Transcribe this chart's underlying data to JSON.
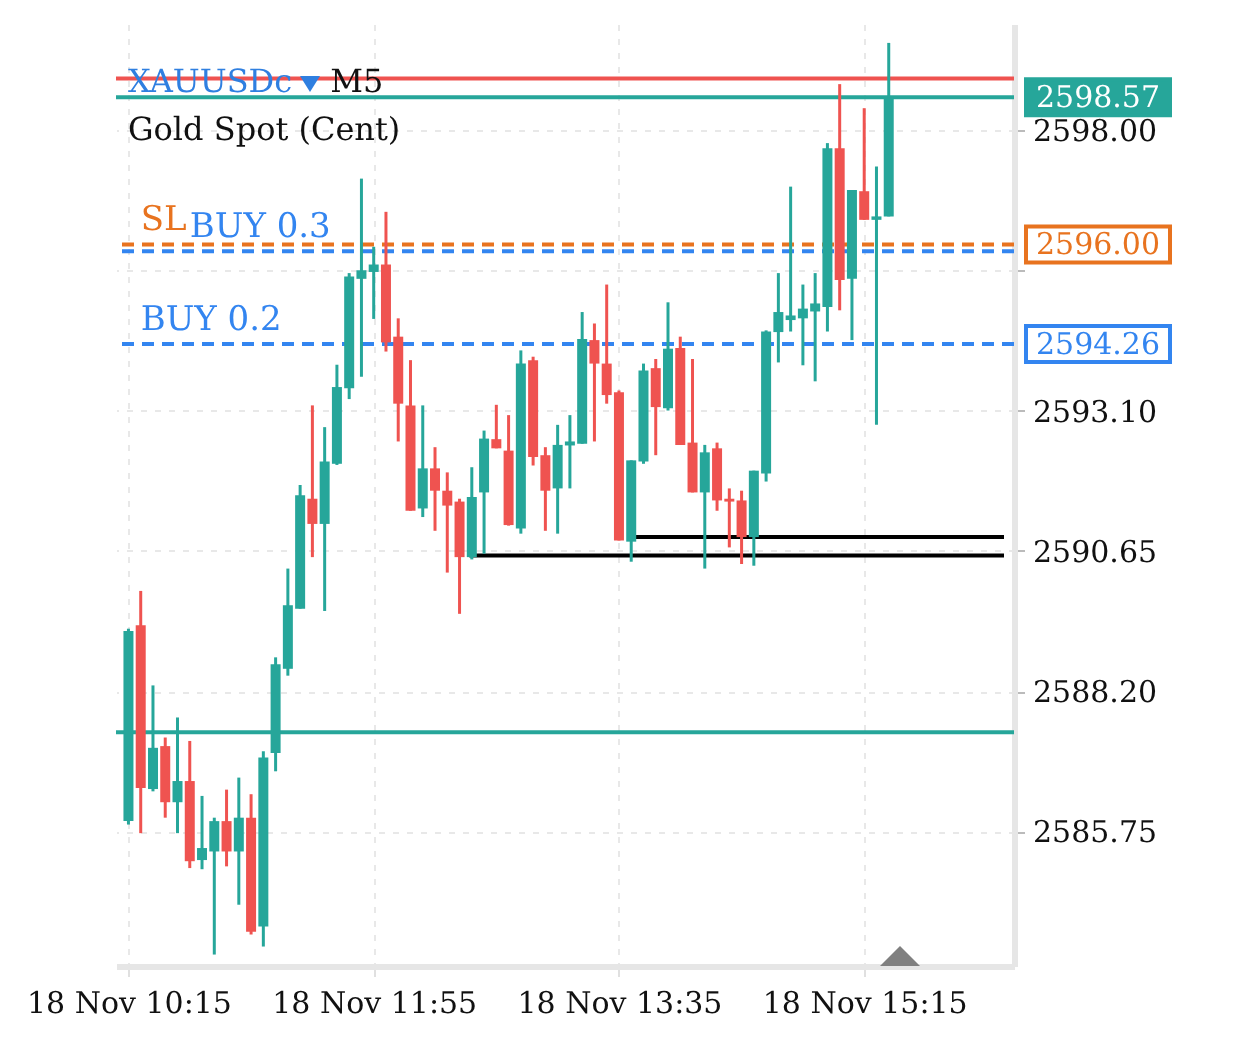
{
  "chart_data": {
    "type": "candlestick",
    "title": "XAUUSDc",
    "subtitle": "Gold Spot (Cent)",
    "annotations": [
      "M5",
      {
        "text": "SL",
        "x": "--11-18T10:20",
        "y": 2596.0
      },
      {
        "text": "BUY 0.3",
        "x": "--11-18T10:40",
        "y": 2595.88
      },
      {
        "text": "BUY 0.2",
        "x": "--11-18T10:20",
        "y": 2594.26
      }
    ],
    "x": [
      "--11-18T10:15",
      "--11-18T10:20",
      "--11-18T10:25",
      "--11-18T10:30",
      "--11-18T10:35",
      "--11-18T10:40",
      "--11-18T10:45",
      "--11-18T10:50",
      "--11-18T10:55",
      "--11-18T11:00",
      "--11-18T11:05",
      "--11-18T11:10",
      "--11-18T11:15",
      "--11-18T11:20",
      "--11-18T11:25",
      "--11-18T11:30",
      "--11-18T11:35",
      "--11-18T11:40",
      "--11-18T11:45",
      "--11-18T11:50",
      "--11-18T11:55",
      "--11-18T12:00",
      "--11-18T12:05",
      "--11-18T12:10",
      "--11-18T12:15",
      "--11-18T12:20",
      "--11-18T12:25",
      "--11-18T12:30",
      "--11-18T12:35",
      "--11-18T12:40",
      "--11-18T12:45",
      "--11-18T12:50",
      "--11-18T12:55",
      "--11-18T13:00",
      "--11-18T13:05",
      "--11-18T13:10",
      "--11-18T13:15",
      "--11-18T13:20",
      "--11-18T13:25",
      "--11-18T13:30",
      "--11-18T13:35",
      "--11-18T13:40",
      "--11-18T13:45",
      "--11-18T13:50",
      "--11-18T13:55",
      "--11-18T14:00",
      "--11-18T14:05",
      "--11-18T14:10",
      "--11-18T14:15",
      "--11-18T14:20",
      "--11-18T14:25",
      "--11-18T14:30",
      "--11-18T14:35",
      "--11-18T14:40",
      "--11-18T14:45",
      "--11-18T14:50",
      "--11-18T14:55",
      "--11-18T15:00",
      "--11-18T15:05",
      "--11-18T15:10",
      "--11-18T15:15",
      "--11-18T15:20",
      "--11-18T15:25"
    ],
    "ohlc": [
      [
        2585.93,
        2589.29,
        2585.87,
        2589.25
      ],
      [
        2589.35,
        2589.95,
        2585.72,
        2586.51
      ],
      [
        2586.49,
        2588.3,
        2586.45,
        2587.21
      ],
      [
        2587.24,
        2587.39,
        2585.99,
        2586.26
      ],
      [
        2586.26,
        2587.74,
        2585.72,
        2586.63
      ],
      [
        2586.63,
        2587.33,
        2585.11,
        2585.23
      ],
      [
        2585.25,
        2586.37,
        2585.09,
        2585.46
      ],
      [
        2585.4,
        2585.99,
        2583.6,
        2585.93
      ],
      [
        2585.93,
        2586.48,
        2585.14,
        2585.4
      ],
      [
        2585.4,
        2586.69,
        2584.47,
        2585.99
      ],
      [
        2585.99,
        2586.4,
        2583.95,
        2584.0
      ],
      [
        2584.09,
        2587.15,
        2583.74,
        2587.04
      ],
      [
        2587.12,
        2588.79,
        2586.8,
        2588.67
      ],
      [
        2588.59,
        2590.34,
        2588.47,
        2589.7
      ],
      [
        2589.64,
        2591.8,
        2589.64,
        2591.62
      ],
      [
        2591.56,
        2593.19,
        2590.54,
        2591.12
      ],
      [
        2591.12,
        2592.81,
        2589.6,
        2592.21
      ],
      [
        2592.17,
        2593.9,
        2592.15,
        2593.51
      ],
      [
        2593.49,
        2595.5,
        2593.3,
        2595.44
      ],
      [
        2595.4,
        2597.15,
        2593.69,
        2595.55
      ],
      [
        2595.52,
        2595.96,
        2594.7,
        2595.65
      ],
      [
        2595.65,
        2596.57,
        2594.13,
        2594.29
      ],
      [
        2594.39,
        2594.71,
        2592.56,
        2593.22
      ],
      [
        2593.19,
        2593.98,
        2591.35,
        2591.35
      ],
      [
        2591.39,
        2593.19,
        2591.24,
        2592.09
      ],
      [
        2592.09,
        2592.46,
        2591.0,
        2591.7
      ],
      [
        2591.7,
        2592.02,
        2590.27,
        2591.44
      ],
      [
        2591.51,
        2591.56,
        2589.55,
        2590.54
      ],
      [
        2590.54,
        2592.11,
        2590.5,
        2591.59
      ],
      [
        2591.67,
        2592.75,
        2590.6,
        2592.61
      ],
      [
        2592.6,
        2593.2,
        2592.44,
        2592.44
      ],
      [
        2592.4,
        2593.02,
        2591.09,
        2591.1
      ],
      [
        2591.04,
        2594.15,
        2590.95,
        2593.92
      ],
      [
        2593.98,
        2594.04,
        2592.14,
        2592.29
      ],
      [
        2592.32,
        2592.46,
        2591.0,
        2591.7
      ],
      [
        2591.74,
        2592.85,
        2590.95,
        2592.5
      ],
      [
        2592.49,
        2593.02,
        2591.74,
        2592.56
      ],
      [
        2592.52,
        2594.82,
        2592.52,
        2594.35
      ],
      [
        2594.33,
        2594.62,
        2592.56,
        2593.92
      ],
      [
        2593.92,
        2595.3,
        2593.22,
        2593.37
      ],
      [
        2593.42,
        2593.45,
        2590.83,
        2590.83
      ],
      [
        2590.81,
        2592.23,
        2590.46,
        2592.23
      ],
      [
        2592.21,
        2593.92,
        2592.17,
        2593.8
      ],
      [
        2593.84,
        2594.0,
        2592.32,
        2593.16
      ],
      [
        2593.14,
        2594.99,
        2593.1,
        2594.18
      ],
      [
        2594.19,
        2594.39,
        2592.5,
        2592.5
      ],
      [
        2592.54,
        2594.0,
        2591.67,
        2591.67
      ],
      [
        2591.67,
        2592.5,
        2590.34,
        2592.37
      ],
      [
        2592.44,
        2592.54,
        2591.35,
        2591.53
      ],
      [
        2591.56,
        2591.74,
        2590.71,
        2591.51
      ],
      [
        2591.53,
        2591.7,
        2590.42,
        2590.89
      ],
      [
        2590.89,
        2592.05,
        2590.39,
        2592.05
      ],
      [
        2592.0,
        2594.5,
        2591.86,
        2594.48
      ],
      [
        2594.47,
        2595.5,
        2593.94,
        2594.82
      ],
      [
        2594.68,
        2597.01,
        2594.48,
        2594.76
      ],
      [
        2594.71,
        2595.3,
        2593.89,
        2594.88
      ],
      [
        2594.83,
        2595.5,
        2593.61,
        2594.97
      ],
      [
        2594.91,
        2597.77,
        2594.48,
        2597.68
      ],
      [
        2597.68,
        2598.8,
        2594.85,
        2595.38
      ],
      [
        2595.4,
        2596.95,
        2594.33,
        2596.95
      ],
      [
        2596.93,
        2598.38,
        2596.43,
        2596.43
      ],
      [
        2596.43,
        2597.36,
        2592.85,
        2596.49
      ],
      [
        2596.49,
        2599.52,
        2596.49,
        2598.57
      ]
    ],
    "colors": [
      "#26a69a",
      "#ef5350",
      "#26a69a",
      "#ef5350",
      "#26a69a",
      "#ef5350",
      "#26a69a",
      "#26a69a",
      "#ef5350",
      "#26a69a",
      "#ef5350",
      "#26a69a",
      "#26a69a",
      "#26a69a",
      "#26a69a",
      "#ef5350",
      "#26a69a",
      "#26a69a",
      "#26a69a",
      "#26a69a",
      "#26a69a",
      "#ef5350",
      "#ef5350",
      "#ef5350",
      "#26a69a",
      "#ef5350",
      "#ef5350",
      "#ef5350",
      "#26a69a",
      "#26a69a",
      "#ef5350",
      "#ef5350",
      "#26a69a",
      "#ef5350",
      "#ef5350",
      "#26a69a",
      "#26a69a",
      "#26a69a",
      "#ef5350",
      "#ef5350",
      "#ef5350",
      "#26a69a",
      "#26a69a",
      "#ef5350",
      "#26a69a",
      "#ef5350",
      "#ef5350",
      "#26a69a",
      "#ef5350",
      "#ef5350",
      "#ef5350",
      "#26a69a",
      "#26a69a",
      "#26a69a",
      "#26a69a",
      "#26a69a",
      "#26a69a",
      "#26a69a",
      "#ef5350",
      "#26a69a",
      "#ef5350",
      "#26a69a",
      "#26a69a"
    ],
    "series": [
      {
        "type": "line",
        "color": "#000000",
        "x": [
          "--11-18T12:34",
          "--11-18T16:12"
        ],
        "values": [
          2590.57,
          2590.57
        ]
      },
      {
        "type": "line",
        "color": "#000000",
        "x": [
          "--11-18T13:40",
          "--11-18T16:12"
        ],
        "values": [
          2590.89,
          2590.89
        ]
      }
    ],
    "ref_lines": [
      {
        "axis": "y",
        "value": 2598.9,
        "color": "#ef5350",
        "line_style": "solid"
      },
      {
        "axis": "y",
        "value": 2598.57,
        "label": "2598.57",
        "color": "#26a69a",
        "line_style": "solid"
      },
      {
        "axis": "y",
        "value": 2596.0,
        "label": "2596.00",
        "color": "#e8731f",
        "line_style": "dashed"
      },
      {
        "axis": "y",
        "value": 2595.88,
        "color": "#3385f0",
        "line_style": "dashed"
      },
      {
        "axis": "y",
        "value": 2594.26,
        "label": "2594.26",
        "color": "#3385f0",
        "line_style": "dashed"
      },
      {
        "axis": "y",
        "value": 2587.48,
        "color": "#26a69a",
        "line_style": "solid"
      }
    ],
    "xlim": [
      "--11-18T10:14",
      "--11-18T16:12"
    ],
    "xticks": [
      {
        "value": "--11-18T10:15",
        "label": "18 Nov 10:15"
      },
      {
        "value": "--11-18T11:55",
        "label": "18 Nov 11:55"
      },
      {
        "value": "--11-18T13:35",
        "label": "18 Nov 13:35"
      },
      {
        "value": "--11-18T15:15",
        "label": "18 Nov 15:15"
      }
    ],
    "ylim": [
      2583.4,
      2599.85
    ],
    "yticks": [
      {
        "value": 2598,
        "label": "2598.00"
      },
      {
        "value": 2595.55,
        "label": null
      },
      {
        "value": 2593.1,
        "label": "2593.10"
      },
      {
        "value": 2590.65,
        "label": "2590.65"
      },
      {
        "value": 2588.2,
        "label": "2588.20"
      },
      {
        "value": 2585.75,
        "label": "2585.75"
      }
    ],
    "grid": true
  }
}
